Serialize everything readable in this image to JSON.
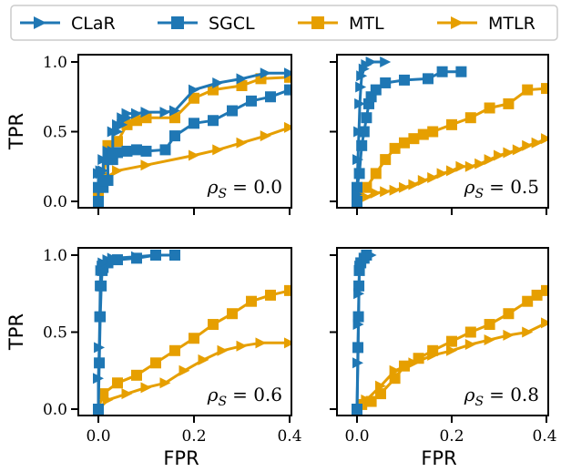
{
  "colors": {
    "blue": "#1f77b4",
    "orange": "#e69f00"
  },
  "legend": {
    "placement": "top",
    "entries": [
      {
        "label": "CLaR",
        "color": "#1f77b4",
        "marker": "triangle-right"
      },
      {
        "label": "SGCL",
        "color": "#1f77b4",
        "marker": "square"
      },
      {
        "label": "MTL",
        "color": "#e69f00",
        "marker": "square"
      },
      {
        "label": "MTLR",
        "color": "#e69f00",
        "marker": "triangle-right"
      }
    ]
  },
  "chart_data": [
    {
      "type": "line",
      "annotation": {
        "rho": "ρ",
        "sub": "S",
        "value": "= 0.0"
      },
      "xlabel": "",
      "ylabel": "TPR",
      "xlim": [
        0,
        0.4
      ],
      "ylim": [
        0,
        1.0
      ],
      "xticks": [
        "",
        "",
        ""
      ],
      "yticks": [
        "0.0",
        "0.5",
        "1.0"
      ],
      "series": [
        {
          "name": "CLaR",
          "points": [
            [
              0,
              0
            ],
            [
              0,
              0.2
            ],
            [
              0.005,
              0.2
            ],
            [
              0.005,
              0.22
            ],
            [
              0.01,
              0.22
            ],
            [
              0.01,
              0.3
            ],
            [
              0.02,
              0.3
            ],
            [
              0.02,
              0.36
            ],
            [
              0.03,
              0.36
            ],
            [
              0.03,
              0.5
            ],
            [
              0.04,
              0.5
            ],
            [
              0.04,
              0.55
            ],
            [
              0.05,
              0.55
            ],
            [
              0.05,
              0.6
            ],
            [
              0.06,
              0.6
            ],
            [
              0.06,
              0.63
            ],
            [
              0.08,
              0.63
            ],
            [
              0.1,
              0.64
            ],
            [
              0.14,
              0.64
            ],
            [
              0.16,
              0.65
            ],
            [
              0.2,
              0.8
            ],
            [
              0.25,
              0.85
            ],
            [
              0.3,
              0.88
            ],
            [
              0.35,
              0.92
            ],
            [
              0.4,
              0.92
            ]
          ]
        },
        {
          "name": "SGCL",
          "points": [
            [
              0,
              0
            ],
            [
              0,
              0.1
            ],
            [
              0.01,
              0.1
            ],
            [
              0.01,
              0.15
            ],
            [
              0.02,
              0.15
            ],
            [
              0.02,
              0.3
            ],
            [
              0.03,
              0.3
            ],
            [
              0.04,
              0.35
            ],
            [
              0.06,
              0.36
            ],
            [
              0.08,
              0.37
            ],
            [
              0.1,
              0.36
            ],
            [
              0.14,
              0.37
            ],
            [
              0.16,
              0.47
            ],
            [
              0.2,
              0.56
            ],
            [
              0.24,
              0.58
            ],
            [
              0.28,
              0.65
            ],
            [
              0.32,
              0.72
            ],
            [
              0.36,
              0.75
            ],
            [
              0.4,
              0.8
            ]
          ]
        },
        {
          "name": "MTL",
          "points": [
            [
              0,
              0
            ],
            [
              0,
              0.05
            ],
            [
              0.01,
              0.17
            ],
            [
              0.02,
              0.4
            ],
            [
              0.04,
              0.43
            ],
            [
              0.06,
              0.55
            ],
            [
              0.08,
              0.58
            ],
            [
              0.1,
              0.6
            ],
            [
              0.16,
              0.6
            ],
            [
              0.2,
              0.74
            ],
            [
              0.24,
              0.8
            ],
            [
              0.3,
              0.83
            ],
            [
              0.34,
              0.88
            ],
            [
              0.4,
              0.89
            ]
          ]
        },
        {
          "name": "MTLR",
          "points": [
            [
              0,
              0
            ],
            [
              0.02,
              0.18
            ],
            [
              0.04,
              0.22
            ],
            [
              0.1,
              0.26
            ],
            [
              0.2,
              0.33
            ],
            [
              0.25,
              0.37
            ],
            [
              0.3,
              0.42
            ],
            [
              0.35,
              0.47
            ],
            [
              0.4,
              0.53
            ]
          ]
        }
      ]
    },
    {
      "type": "line",
      "annotation": {
        "rho": "ρ",
        "sub": "S",
        "value": "= 0.5"
      },
      "xlabel": "",
      "ylabel": "",
      "xlim": [
        0,
        0.4
      ],
      "ylim": [
        0,
        1.0
      ],
      "xticks": [
        "",
        "",
        ""
      ],
      "yticks": [
        "",
        "",
        ""
      ],
      "series": [
        {
          "name": "CLaR",
          "points": [
            [
              0,
              0
            ],
            [
              0,
              0.05
            ],
            [
              0.002,
              0.3
            ],
            [
              0.004,
              0.5
            ],
            [
              0.006,
              0.7
            ],
            [
              0.008,
              0.82
            ],
            [
              0.01,
              0.9
            ],
            [
              0.015,
              0.95
            ],
            [
              0.02,
              0.98
            ],
            [
              0.03,
              1.0
            ],
            [
              0.06,
              1.0
            ]
          ]
        },
        {
          "name": "SGCL",
          "points": [
            [
              0,
              0
            ],
            [
              0,
              0.1
            ],
            [
              0.005,
              0.2
            ],
            [
              0.01,
              0.4
            ],
            [
              0.015,
              0.5
            ],
            [
              0.02,
              0.6
            ],
            [
              0.025,
              0.7
            ],
            [
              0.03,
              0.75
            ],
            [
              0.04,
              0.8
            ],
            [
              0.06,
              0.85
            ],
            [
              0.1,
              0.87
            ],
            [
              0.15,
              0.88
            ],
            [
              0.18,
              0.93
            ],
            [
              0.22,
              0.93
            ]
          ]
        },
        {
          "name": "MTL",
          "points": [
            [
              0,
              0
            ],
            [
              0,
              0.03
            ],
            [
              0.02,
              0.1
            ],
            [
              0.04,
              0.2
            ],
            [
              0.06,
              0.3
            ],
            [
              0.08,
              0.38
            ],
            [
              0.1,
              0.42
            ],
            [
              0.12,
              0.45
            ],
            [
              0.14,
              0.48
            ],
            [
              0.16,
              0.5
            ],
            [
              0.2,
              0.55
            ],
            [
              0.24,
              0.6
            ],
            [
              0.28,
              0.67
            ],
            [
              0.32,
              0.7
            ],
            [
              0.36,
              0.8
            ],
            [
              0.4,
              0.81
            ]
          ]
        },
        {
          "name": "MTLR",
          "points": [
            [
              0,
              0
            ],
            [
              0.02,
              0.03
            ],
            [
              0.04,
              0.06
            ],
            [
              0.06,
              0.07
            ],
            [
              0.08,
              0.08
            ],
            [
              0.1,
              0.1
            ],
            [
              0.12,
              0.12
            ],
            [
              0.14,
              0.15
            ],
            [
              0.16,
              0.17
            ],
            [
              0.18,
              0.2
            ],
            [
              0.2,
              0.22
            ],
            [
              0.22,
              0.25
            ],
            [
              0.24,
              0.25
            ],
            [
              0.26,
              0.27
            ],
            [
              0.28,
              0.3
            ],
            [
              0.3,
              0.33
            ],
            [
              0.32,
              0.35
            ],
            [
              0.34,
              0.37
            ],
            [
              0.36,
              0.4
            ],
            [
              0.38,
              0.42
            ],
            [
              0.4,
              0.45
            ]
          ]
        }
      ]
    },
    {
      "type": "line",
      "annotation": {
        "rho": "ρ",
        "sub": "S",
        "value": "= 0.6"
      },
      "xlabel": "FPR",
      "ylabel": "TPR",
      "xlim": [
        0,
        0.4
      ],
      "ylim": [
        0,
        1.0
      ],
      "xticks": [
        "0.0",
        "0.2",
        "0.4"
      ],
      "yticks": [
        "0.0",
        "0.5",
        "1.0"
      ],
      "series": [
        {
          "name": "CLaR",
          "points": [
            [
              0,
              0
            ],
            [
              0,
              0.2
            ],
            [
              0.002,
              0.4
            ],
            [
              0.003,
              0.6
            ],
            [
              0.004,
              0.8
            ],
            [
              0.005,
              0.9
            ],
            [
              0.008,
              0.93
            ],
            [
              0.01,
              0.95
            ],
            [
              0.02,
              0.97
            ],
            [
              0.03,
              0.98
            ],
            [
              0.08,
              0.99
            ],
            [
              0.12,
              1.0
            ]
          ]
        },
        {
          "name": "SGCL",
          "points": [
            [
              0,
              0
            ],
            [
              0.002,
              0.3
            ],
            [
              0.004,
              0.6
            ],
            [
              0.006,
              0.8
            ],
            [
              0.008,
              0.9
            ],
            [
              0.01,
              0.92
            ],
            [
              0.02,
              0.95
            ],
            [
              0.04,
              0.97
            ],
            [
              0.08,
              0.98
            ],
            [
              0.12,
              1.0
            ],
            [
              0.16,
              1.0
            ]
          ]
        },
        {
          "name": "MTL",
          "points": [
            [
              0,
              0
            ],
            [
              0.01,
              0.1
            ],
            [
              0.04,
              0.17
            ],
            [
              0.08,
              0.22
            ],
            [
              0.12,
              0.3
            ],
            [
              0.16,
              0.38
            ],
            [
              0.2,
              0.46
            ],
            [
              0.24,
              0.55
            ],
            [
              0.28,
              0.62
            ],
            [
              0.32,
              0.7
            ],
            [
              0.36,
              0.74
            ],
            [
              0.4,
              0.77
            ]
          ]
        },
        {
          "name": "MTLR",
          "points": [
            [
              0,
              0
            ],
            [
              0.02,
              0.06
            ],
            [
              0.06,
              0.1
            ],
            [
              0.1,
              0.14
            ],
            [
              0.14,
              0.17
            ],
            [
              0.18,
              0.25
            ],
            [
              0.22,
              0.32
            ],
            [
              0.26,
              0.38
            ],
            [
              0.3,
              0.41
            ],
            [
              0.34,
              0.43
            ],
            [
              0.4,
              0.43
            ]
          ]
        }
      ]
    },
    {
      "type": "line",
      "annotation": {
        "rho": "ρ",
        "sub": "S",
        "value": "= 0.8"
      },
      "xlabel": "FPR",
      "ylabel": "",
      "xlim": [
        0,
        0.4
      ],
      "ylim": [
        0,
        1.0
      ],
      "xticks": [
        "0.0",
        "0.2",
        "0.4"
      ],
      "yticks": [
        "",
        "",
        ""
      ],
      "series": [
        {
          "name": "CLaR",
          "points": [
            [
              0,
              0
            ],
            [
              0.002,
              0.3
            ],
            [
              0.003,
              0.55
            ],
            [
              0.004,
              0.75
            ],
            [
              0.005,
              0.9
            ],
            [
              0.006,
              0.93
            ],
            [
              0.01,
              0.95
            ],
            [
              0.02,
              0.98
            ],
            [
              0.03,
              1.0
            ]
          ]
        },
        {
          "name": "SGCL",
          "points": [
            [
              0,
              0
            ],
            [
              0.002,
              0.4
            ],
            [
              0.003,
              0.6
            ],
            [
              0.004,
              0.8
            ],
            [
              0.005,
              0.9
            ],
            [
              0.008,
              0.95
            ],
            [
              0.015,
              0.98
            ],
            [
              0.02,
              1.0
            ]
          ]
        },
        {
          "name": "MTL",
          "points": [
            [
              0,
              0
            ],
            [
              0.01,
              0.03
            ],
            [
              0.03,
              0.05
            ],
            [
              0.05,
              0.1
            ],
            [
              0.08,
              0.2
            ],
            [
              0.1,
              0.28
            ],
            [
              0.13,
              0.33
            ],
            [
              0.16,
              0.38
            ],
            [
              0.2,
              0.44
            ],
            [
              0.24,
              0.5
            ],
            [
              0.28,
              0.55
            ],
            [
              0.32,
              0.62
            ],
            [
              0.36,
              0.7
            ],
            [
              0.38,
              0.74
            ],
            [
              0.4,
              0.77
            ]
          ]
        },
        {
          "name": "MTLR",
          "points": [
            [
              0,
              0
            ],
            [
              0.02,
              0.06
            ],
            [
              0.05,
              0.15
            ],
            [
              0.08,
              0.25
            ],
            [
              0.12,
              0.3
            ],
            [
              0.16,
              0.35
            ],
            [
              0.2,
              0.38
            ],
            [
              0.24,
              0.42
            ],
            [
              0.28,
              0.45
            ],
            [
              0.32,
              0.48
            ],
            [
              0.36,
              0.5
            ],
            [
              0.4,
              0.56
            ]
          ]
        }
      ]
    }
  ]
}
